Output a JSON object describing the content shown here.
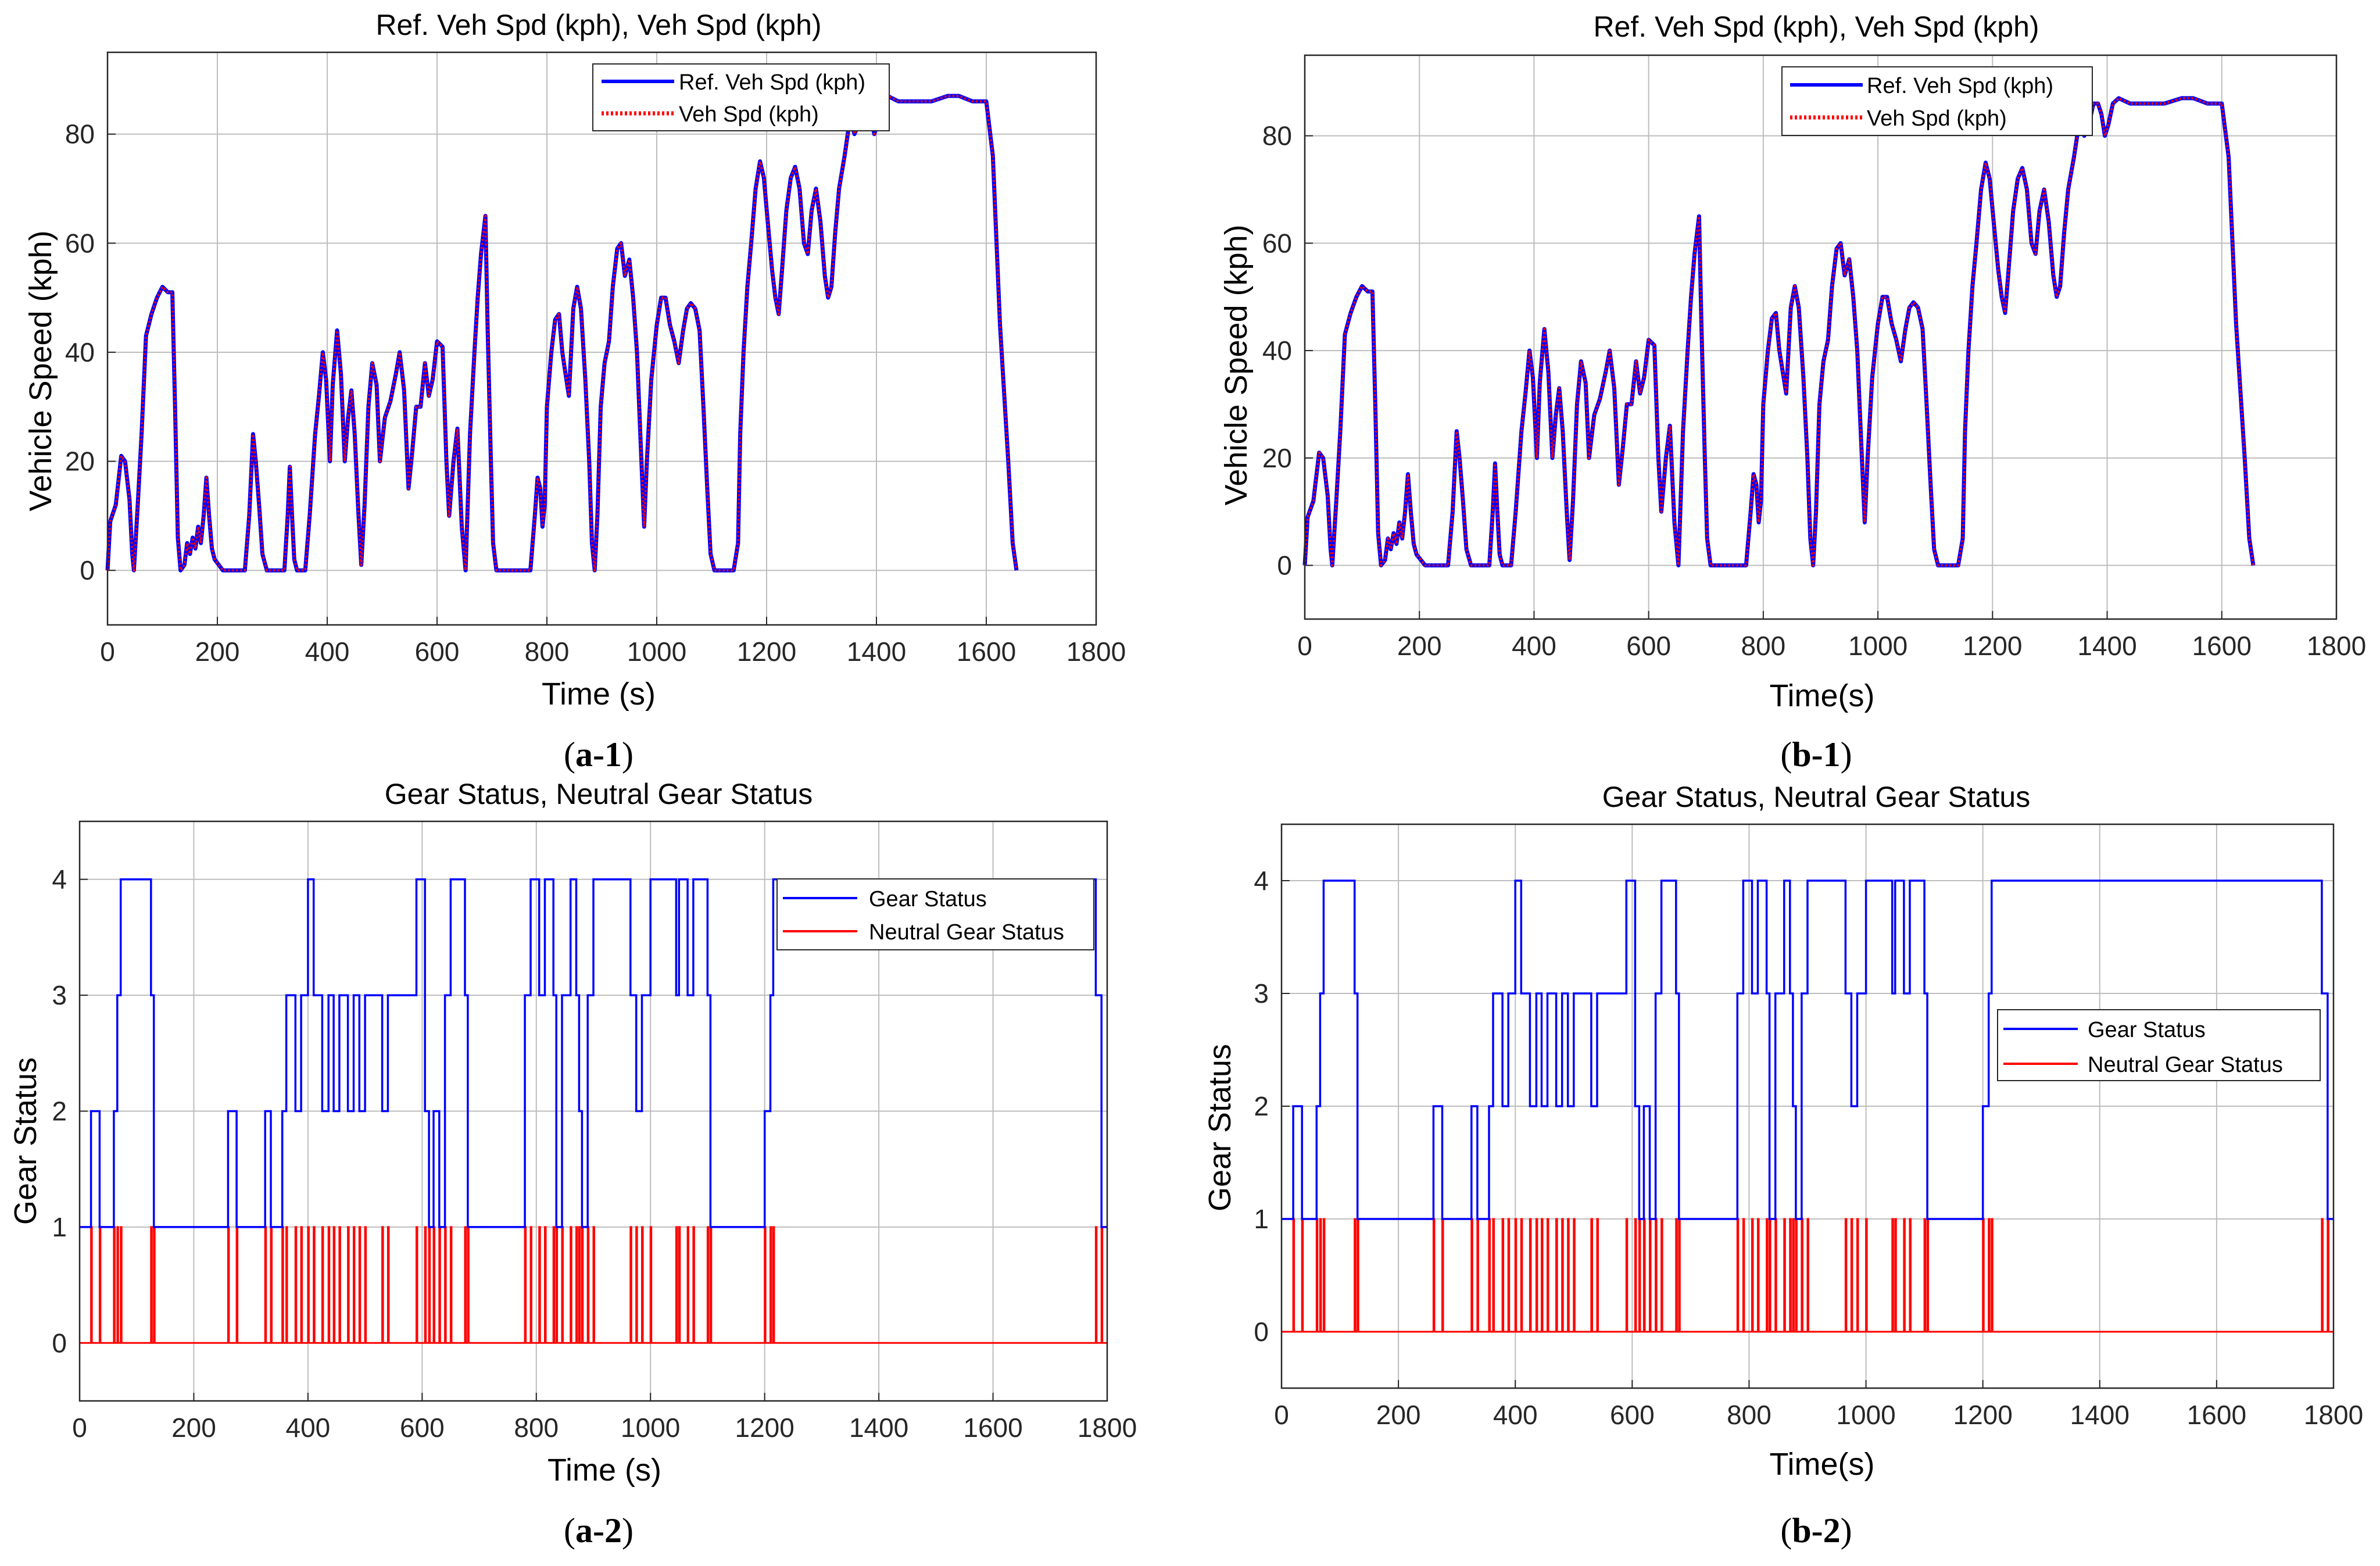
{
  "colors": {
    "ref_line": "#0000ff",
    "veh_line": "#ff0000",
    "gear_line": "#0000ff",
    "neutral_line": "#ff0000",
    "grid": "#bdbdbd",
    "axis": "#262626",
    "text": "#262626"
  },
  "chart_data": [
    {
      "id": "a1",
      "caption": {
        "open": "(",
        "letter": "a-1",
        "close": ")"
      },
      "type": "line",
      "title": "Ref. Veh Spd (kph), Veh Spd (kph)",
      "xlabel": "Time (s)",
      "ylabel": "Vehicle Speed (kph)",
      "xlim": [
        0,
        1800
      ],
      "ylim": [
        -10,
        95
      ],
      "xticks": [
        "0",
        "200",
        "400",
        "600",
        "800",
        "1000",
        "1200",
        "1400",
        "1600",
        "1800"
      ],
      "yticks": [
        "0",
        "20",
        "40",
        "60",
        "80"
      ],
      "grid": true,
      "legend_position": "top-center",
      "series": [
        {
          "name": "Ref. Veh Spd (kph)",
          "style": "solid",
          "color": "#0000ff"
        },
        {
          "name": "Veh Spd (kph)",
          "style": "dotted",
          "color": "#ff0000"
        }
      ]
    },
    {
      "id": "b1",
      "caption": {
        "open": "(",
        "letter": "b-1",
        "close": ")"
      },
      "type": "line",
      "title": "Ref. Veh Spd (kph), Veh Spd (kph)",
      "xlabel": "Time(s)",
      "ylabel": "Vehicle Speed (kph)",
      "xlim": [
        0,
        1800
      ],
      "ylim": [
        -10,
        95
      ],
      "xticks": [
        "0",
        "200",
        "400",
        "600",
        "800",
        "1000",
        "1200",
        "1400",
        "1600",
        "1800"
      ],
      "yticks": [
        "0",
        "20",
        "40",
        "60",
        "80"
      ],
      "grid": true,
      "legend_position": "top-center",
      "series": [
        {
          "name": "Ref. Veh Spd (kph)",
          "style": "solid",
          "color": "#0000ff"
        },
        {
          "name": "Veh Spd (kph)",
          "style": "dotted",
          "color": "#ff0000"
        }
      ]
    },
    {
      "id": "a2",
      "caption": {
        "open": "(",
        "letter": "a-2",
        "close": ")"
      },
      "type": "line",
      "title": "Gear Status, Neutral Gear Status",
      "xlabel": "Time (s)",
      "ylabel": "Gear Status",
      "xlim": [
        0,
        1800
      ],
      "ylim": [
        -0.5,
        4.5
      ],
      "xticks": [
        "0",
        "200",
        "400",
        "600",
        "800",
        "1000",
        "1200",
        "1400",
        "1600",
        "1800"
      ],
      "yticks": [
        "0",
        "1",
        "2",
        "3",
        "4"
      ],
      "grid": true,
      "legend_position": "top-right",
      "series": [
        {
          "name": "Gear Status",
          "style": "step",
          "color": "#0000ff"
        },
        {
          "name": "Neutral Gear Status",
          "style": "step",
          "color": "#ff0000"
        }
      ]
    },
    {
      "id": "b2",
      "caption": {
        "open": "(",
        "letter": "b-2",
        "close": ")"
      },
      "type": "line",
      "title": "Gear Status, Neutral Gear Status",
      "xlabel": "Time(s)",
      "ylabel": "Gear Status",
      "xlim": [
        0,
        1800
      ],
      "ylim": [
        -0.5,
        4.5
      ],
      "xticks": [
        "0",
        "200",
        "400",
        "600",
        "800",
        "1000",
        "1200",
        "1400",
        "1600",
        "1800"
      ],
      "yticks": [
        "0",
        "1",
        "2",
        "3",
        "4"
      ],
      "grid": true,
      "legend_position": "right",
      "series": [
        {
          "name": "Gear Status",
          "style": "step",
          "color": "#0000ff"
        },
        {
          "name": "Neutral Gear Status",
          "style": "step",
          "color": "#ff0000"
        }
      ]
    }
  ],
  "speed_profile": [
    [
      0,
      0
    ],
    [
      5,
      9
    ],
    [
      15,
      12
    ],
    [
      25,
      21
    ],
    [
      32,
      20
    ],
    [
      40,
      13
    ],
    [
      45,
      3
    ],
    [
      48,
      0
    ],
    [
      55,
      12
    ],
    [
      62,
      25
    ],
    [
      70,
      43
    ],
    [
      80,
      47
    ],
    [
      90,
      50
    ],
    [
      100,
      52
    ],
    [
      110,
      51
    ],
    [
      118,
      51
    ],
    [
      123,
      30
    ],
    [
      128,
      6
    ],
    [
      133,
      0
    ],
    [
      140,
      1
    ],
    [
      145,
      5
    ],
    [
      150,
      3
    ],
    [
      155,
      6
    ],
    [
      160,
      4
    ],
    [
      165,
      8
    ],
    [
      170,
      5
    ],
    [
      175,
      10
    ],
    [
      180,
      17
    ],
    [
      185,
      10
    ],
    [
      190,
      4
    ],
    [
      195,
      2
    ],
    [
      210,
      0
    ],
    [
      235,
      0
    ],
    [
      250,
      0
    ],
    [
      258,
      10
    ],
    [
      265,
      25
    ],
    [
      270,
      20
    ],
    [
      276,
      12
    ],
    [
      282,
      3
    ],
    [
      290,
      0
    ],
    [
      322,
      0
    ],
    [
      328,
      10
    ],
    [
      332,
      19
    ],
    [
      336,
      10
    ],
    [
      340,
      2
    ],
    [
      345,
      0
    ],
    [
      360,
      0
    ],
    [
      368,
      10
    ],
    [
      378,
      25
    ],
    [
      385,
      32
    ],
    [
      392,
      40
    ],
    [
      398,
      35
    ],
    [
      405,
      20
    ],
    [
      410,
      34
    ],
    [
      418,
      44
    ],
    [
      425,
      36
    ],
    [
      432,
      20
    ],
    [
      438,
      28
    ],
    [
      444,
      33
    ],
    [
      450,
      25
    ],
    [
      457,
      10
    ],
    [
      462,
      1
    ],
    [
      468,
      12
    ],
    [
      475,
      30
    ],
    [
      482,
      38
    ],
    [
      490,
      34
    ],
    [
      496,
      20
    ],
    [
      505,
      28
    ],
    [
      515,
      31
    ],
    [
      525,
      36
    ],
    [
      532,
      40
    ],
    [
      540,
      33
    ],
    [
      548,
      15
    ],
    [
      555,
      22
    ],
    [
      562,
      30
    ],
    [
      570,
      30
    ],
    [
      578,
      38
    ],
    [
      585,
      32
    ],
    [
      592,
      35
    ],
    [
      600,
      42
    ],
    [
      610,
      41
    ],
    [
      617,
      20
    ],
    [
      622,
      10
    ],
    [
      630,
      20
    ],
    [
      637,
      26
    ],
    [
      645,
      8
    ],
    [
      652,
      0
    ],
    [
      660,
      25
    ],
    [
      668,
      40
    ],
    [
      674,
      50
    ],
    [
      680,
      58
    ],
    [
      688,
      65
    ],
    [
      692,
      45
    ],
    [
      698,
      20
    ],
    [
      702,
      5
    ],
    [
      708,
      0
    ],
    [
      730,
      0
    ],
    [
      770,
      0
    ],
    [
      778,
      10
    ],
    [
      783,
      17
    ],
    [
      788,
      15
    ],
    [
      792,
      8
    ],
    [
      796,
      12
    ],
    [
      800,
      30
    ],
    [
      808,
      40
    ],
    [
      815,
      46
    ],
    [
      822,
      47
    ],
    [
      828,
      40
    ],
    [
      834,
      36
    ],
    [
      840,
      32
    ],
    [
      848,
      48
    ],
    [
      855,
      52
    ],
    [
      862,
      48
    ],
    [
      870,
      35
    ],
    [
      877,
      20
    ],
    [
      882,
      5
    ],
    [
      887,
      0
    ],
    [
      892,
      10
    ],
    [
      898,
      30
    ],
    [
      905,
      38
    ],
    [
      913,
      42
    ],
    [
      920,
      52
    ],
    [
      928,
      59
    ],
    [
      935,
      60
    ],
    [
      942,
      54
    ],
    [
      950,
      57
    ],
    [
      957,
      50
    ],
    [
      964,
      40
    ],
    [
      970,
      25
    ],
    [
      977,
      8
    ],
    [
      982,
      20
    ],
    [
      990,
      35
    ],
    [
      1000,
      45
    ],
    [
      1008,
      50
    ],
    [
      1016,
      50
    ],
    [
      1024,
      45
    ],
    [
      1032,
      42
    ],
    [
      1040,
      38
    ],
    [
      1048,
      44
    ],
    [
      1055,
      48
    ],
    [
      1062,
      49
    ],
    [
      1070,
      48
    ],
    [
      1078,
      44
    ],
    [
      1085,
      30
    ],
    [
      1092,
      15
    ],
    [
      1098,
      3
    ],
    [
      1105,
      0
    ],
    [
      1125,
      0
    ],
    [
      1140,
      0
    ],
    [
      1148,
      5
    ],
    [
      1152,
      25
    ],
    [
      1158,
      40
    ],
    [
      1165,
      52
    ],
    [
      1172,
      60
    ],
    [
      1180,
      70
    ],
    [
      1188,
      75
    ],
    [
      1195,
      72
    ],
    [
      1202,
      64
    ],
    [
      1210,
      55
    ],
    [
      1216,
      50
    ],
    [
      1222,
      47
    ],
    [
      1228,
      55
    ],
    [
      1236,
      66
    ],
    [
      1244,
      72
    ],
    [
      1252,
      74
    ],
    [
      1260,
      70
    ],
    [
      1268,
      60
    ],
    [
      1275,
      58
    ],
    [
      1282,
      66
    ],
    [
      1290,
      70
    ],
    [
      1298,
      64
    ],
    [
      1306,
      54
    ],
    [
      1312,
      50
    ],
    [
      1318,
      52
    ],
    [
      1325,
      62
    ],
    [
      1332,
      70
    ],
    [
      1342,
      76
    ],
    [
      1352,
      83
    ],
    [
      1360,
      80
    ],
    [
      1368,
      82
    ],
    [
      1376,
      86
    ],
    [
      1384,
      86
    ],
    [
      1390,
      84
    ],
    [
      1396,
      80
    ],
    [
      1402,
      82
    ],
    [
      1410,
      86
    ],
    [
      1420,
      87
    ],
    [
      1440,
      86
    ],
    [
      1470,
      86
    ],
    [
      1500,
      86
    ],
    [
      1530,
      87
    ],
    [
      1550,
      87
    ],
    [
      1575,
      86
    ],
    [
      1600,
      86
    ],
    [
      1612,
      76
    ],
    [
      1625,
      45
    ],
    [
      1640,
      20
    ],
    [
      1648,
      5
    ],
    [
      1655,
      0
    ]
  ],
  "gear_a": [
    [
      0,
      1
    ],
    [
      20,
      1
    ],
    [
      20,
      2
    ],
    [
      35,
      2
    ],
    [
      35,
      1
    ],
    [
      60,
      1
    ],
    [
      60,
      2
    ],
    [
      66,
      2
    ],
    [
      66,
      3
    ],
    [
      72,
      3
    ],
    [
      72,
      4
    ],
    [
      125,
      4
    ],
    [
      125,
      3
    ],
    [
      130,
      3
    ],
    [
      130,
      1
    ],
    [
      260,
      1
    ],
    [
      260,
      2
    ],
    [
      275,
      2
    ],
    [
      275,
      1
    ],
    [
      325,
      1
    ],
    [
      325,
      2
    ],
    [
      335,
      2
    ],
    [
      335,
      1
    ],
    [
      355,
      1
    ],
    [
      355,
      2
    ],
    [
      362,
      2
    ],
    [
      362,
      3
    ],
    [
      378,
      3
    ],
    [
      378,
      2
    ],
    [
      388,
      2
    ],
    [
      388,
      3
    ],
    [
      400,
      3
    ],
    [
      400,
      4
    ],
    [
      410,
      4
    ],
    [
      410,
      3
    ],
    [
      425,
      3
    ],
    [
      425,
      2
    ],
    [
      436,
      2
    ],
    [
      436,
      3
    ],
    [
      445,
      3
    ],
    [
      445,
      2
    ],
    [
      455,
      2
    ],
    [
      455,
      3
    ],
    [
      470,
      3
    ],
    [
      470,
      2
    ],
    [
      480,
      2
    ],
    [
      480,
      3
    ],
    [
      490,
      3
    ],
    [
      490,
      2
    ],
    [
      500,
      2
    ],
    [
      500,
      3
    ],
    [
      530,
      3
    ],
    [
      530,
      2
    ],
    [
      540,
      2
    ],
    [
      540,
      3
    ],
    [
      590,
      3
    ],
    [
      590,
      4
    ],
    [
      605,
      4
    ],
    [
      605,
      2
    ],
    [
      612,
      2
    ],
    [
      612,
      1
    ],
    [
      620,
      1
    ],
    [
      620,
      2
    ],
    [
      630,
      2
    ],
    [
      630,
      1
    ],
    [
      640,
      1
    ],
    [
      640,
      3
    ],
    [
      650,
      3
    ],
    [
      650,
      4
    ],
    [
      675,
      4
    ],
    [
      675,
      3
    ],
    [
      680,
      3
    ],
    [
      680,
      1
    ],
    [
      780,
      1
    ],
    [
      780,
      3
    ],
    [
      790,
      3
    ],
    [
      790,
      4
    ],
    [
      805,
      4
    ],
    [
      805,
      3
    ],
    [
      815,
      3
    ],
    [
      815,
      4
    ],
    [
      830,
      4
    ],
    [
      830,
      3
    ],
    [
      835,
      3
    ],
    [
      835,
      1
    ],
    [
      845,
      1
    ],
    [
      845,
      3
    ],
    [
      860,
      3
    ],
    [
      860,
      4
    ],
    [
      870,
      4
    ],
    [
      870,
      3
    ],
    [
      875,
      3
    ],
    [
      875,
      2
    ],
    [
      880,
      2
    ],
    [
      880,
      1
    ],
    [
      890,
      1
    ],
    [
      890,
      3
    ],
    [
      900,
      3
    ],
    [
      900,
      4
    ],
    [
      965,
      4
    ],
    [
      965,
      3
    ],
    [
      975,
      3
    ],
    [
      975,
      2
    ],
    [
      985,
      2
    ],
    [
      985,
      3
    ],
    [
      1000,
      3
    ],
    [
      1000,
      4
    ],
    [
      1045,
      4
    ],
    [
      1045,
      3
    ],
    [
      1050,
      3
    ],
    [
      1050,
      4
    ],
    [
      1065,
      4
    ],
    [
      1065,
      3
    ],
    [
      1075,
      3
    ],
    [
      1075,
      4
    ],
    [
      1100,
      4
    ],
    [
      1100,
      3
    ],
    [
      1105,
      3
    ],
    [
      1105,
      1
    ],
    [
      1200,
      1
    ],
    [
      1200,
      2
    ],
    [
      1210,
      2
    ],
    [
      1210,
      3
    ],
    [
      1215,
      3
    ],
    [
      1215,
      4
    ],
    [
      1780,
      4
    ],
    [
      1780,
      3
    ],
    [
      1790,
      3
    ],
    [
      1790,
      1
    ],
    [
      1800,
      1
    ]
  ],
  "gear_b": [
    [
      0,
      1
    ],
    [
      20,
      1
    ],
    [
      20,
      2
    ],
    [
      35,
      2
    ],
    [
      35,
      1
    ],
    [
      60,
      1
    ],
    [
      60,
      2
    ],
    [
      66,
      2
    ],
    [
      66,
      3
    ],
    [
      72,
      3
    ],
    [
      72,
      4
    ],
    [
      125,
      4
    ],
    [
      125,
      3
    ],
    [
      130,
      3
    ],
    [
      130,
      1
    ],
    [
      260,
      1
    ],
    [
      260,
      2
    ],
    [
      275,
      2
    ],
    [
      275,
      1
    ],
    [
      325,
      1
    ],
    [
      325,
      2
    ],
    [
      335,
      2
    ],
    [
      335,
      1
    ],
    [
      355,
      1
    ],
    [
      355,
      2
    ],
    [
      362,
      2
    ],
    [
      362,
      3
    ],
    [
      378,
      3
    ],
    [
      378,
      2
    ],
    [
      388,
      2
    ],
    [
      388,
      3
    ],
    [
      400,
      3
    ],
    [
      400,
      4
    ],
    [
      410,
      4
    ],
    [
      410,
      3
    ],
    [
      425,
      3
    ],
    [
      425,
      2
    ],
    [
      436,
      2
    ],
    [
      436,
      3
    ],
    [
      445,
      3
    ],
    [
      445,
      2
    ],
    [
      455,
      2
    ],
    [
      455,
      3
    ],
    [
      470,
      3
    ],
    [
      470,
      2
    ],
    [
      480,
      2
    ],
    [
      480,
      3
    ],
    [
      490,
      3
    ],
    [
      490,
      2
    ],
    [
      500,
      2
    ],
    [
      500,
      3
    ],
    [
      530,
      3
    ],
    [
      530,
      2
    ],
    [
      540,
      2
    ],
    [
      540,
      3
    ],
    [
      590,
      3
    ],
    [
      590,
      4
    ],
    [
      605,
      4
    ],
    [
      605,
      2
    ],
    [
      612,
      2
    ],
    [
      612,
      1
    ],
    [
      620,
      1
    ],
    [
      620,
      2
    ],
    [
      630,
      2
    ],
    [
      630,
      1
    ],
    [
      640,
      1
    ],
    [
      640,
      3
    ],
    [
      650,
      3
    ],
    [
      650,
      4
    ],
    [
      675,
      4
    ],
    [
      675,
      3
    ],
    [
      680,
      3
    ],
    [
      680,
      1
    ],
    [
      780,
      1
    ],
    [
      780,
      3
    ],
    [
      790,
      3
    ],
    [
      790,
      4
    ],
    [
      805,
      4
    ],
    [
      805,
      3
    ],
    [
      815,
      3
    ],
    [
      815,
      4
    ],
    [
      830,
      4
    ],
    [
      830,
      3
    ],
    [
      835,
      3
    ],
    [
      835,
      1
    ],
    [
      845,
      1
    ],
    [
      845,
      3
    ],
    [
      860,
      3
    ],
    [
      860,
      4
    ],
    [
      870,
      4
    ],
    [
      870,
      3
    ],
    [
      875,
      3
    ],
    [
      875,
      2
    ],
    [
      880,
      2
    ],
    [
      880,
      1
    ],
    [
      890,
      1
    ],
    [
      890,
      3
    ],
    [
      900,
      3
    ],
    [
      900,
      4
    ],
    [
      965,
      4
    ],
    [
      965,
      3
    ],
    [
      975,
      3
    ],
    [
      975,
      2
    ],
    [
      985,
      2
    ],
    [
      985,
      3
    ],
    [
      1000,
      3
    ],
    [
      1000,
      4
    ],
    [
      1045,
      4
    ],
    [
      1045,
      3
    ],
    [
      1050,
      3
    ],
    [
      1050,
      4
    ],
    [
      1065,
      4
    ],
    [
      1065,
      3
    ],
    [
      1075,
      3
    ],
    [
      1075,
      4
    ],
    [
      1100,
      4
    ],
    [
      1100,
      3
    ],
    [
      1105,
      3
    ],
    [
      1105,
      1
    ],
    [
      1200,
      1
    ],
    [
      1200,
      2
    ],
    [
      1210,
      2
    ],
    [
      1210,
      3
    ],
    [
      1215,
      3
    ],
    [
      1215,
      4
    ],
    [
      1780,
      4
    ],
    [
      1780,
      3
    ],
    [
      1790,
      3
    ],
    [
      1790,
      1
    ],
    [
      1800,
      1
    ]
  ],
  "neutral_pulses": [
    20,
    35,
    60,
    66,
    72,
    125,
    130,
    260,
    275,
    325,
    335,
    355,
    362,
    378,
    388,
    400,
    410,
    425,
    436,
    445,
    455,
    470,
    480,
    490,
    500,
    530,
    540,
    590,
    605,
    612,
    620,
    630,
    640,
    650,
    675,
    680,
    780,
    790,
    805,
    815,
    830,
    835,
    845,
    860,
    870,
    875,
    880,
    890,
    900,
    965,
    975,
    985,
    1000,
    1045,
    1050,
    1065,
    1075,
    1100,
    1105,
    1200,
    1210,
    1215,
    1780,
    1790
  ]
}
